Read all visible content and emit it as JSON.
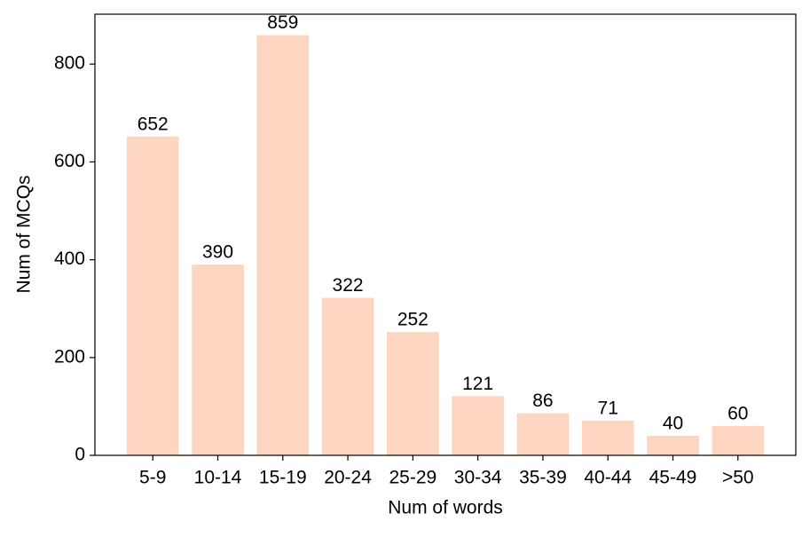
{
  "chart_data": {
    "type": "bar",
    "x_label": "Num of words",
    "y_label": "Num of MCQs",
    "categories": [
      "5-9",
      "10-14",
      "15-19",
      "20-24",
      "25-29",
      "30-34",
      "35-39",
      "40-44",
      "45-49",
      ">50"
    ],
    "values": [
      652,
      390,
      859,
      322,
      252,
      121,
      86,
      71,
      40,
      60
    ],
    "color": "#fdd5c0",
    "ylim": [
      0,
      902
    ],
    "yticks": [
      0,
      200,
      400,
      600,
      800
    ]
  }
}
